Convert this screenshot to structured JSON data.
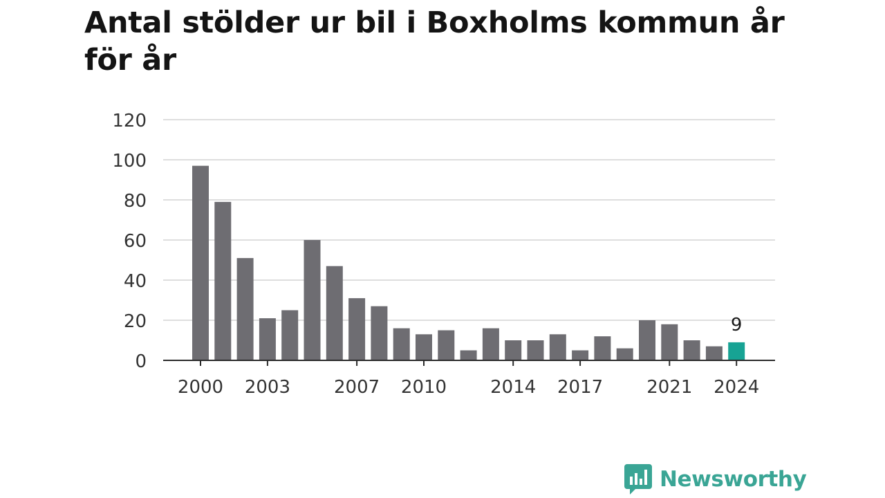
{
  "chart_data": {
    "type": "bar",
    "title": "Antal stölder ur bil i Boxholms kommun år för år",
    "xlabel": "",
    "ylabel": "",
    "categories": [
      2000,
      2001,
      2002,
      2003,
      2004,
      2005,
      2006,
      2007,
      2008,
      2009,
      2010,
      2011,
      2012,
      2013,
      2014,
      2015,
      2016,
      2017,
      2018,
      2019,
      2020,
      2021,
      2022,
      2023,
      2024
    ],
    "values": [
      97,
      79,
      51,
      21,
      25,
      60,
      47,
      31,
      27,
      16,
      13,
      15,
      5,
      16,
      10,
      10,
      13,
      5,
      12,
      6,
      20,
      18,
      10,
      7,
      9
    ],
    "ylim": [
      0,
      120
    ],
    "y_ticks": [
      0,
      20,
      40,
      60,
      80,
      100,
      120
    ],
    "x_tick_labels": [
      "2000",
      "2003",
      "2007",
      "2010",
      "2014",
      "2017",
      "2021",
      "2024"
    ],
    "highlight": {
      "category": 2024,
      "label": "9"
    },
    "grid": true,
    "colors": {
      "bar": "#6e6d72",
      "highlight": "#17a394",
      "grid": "#d4d4d4",
      "axis": "#2a2a2a"
    }
  },
  "brand": {
    "name": "Newsworthy",
    "icon": "newsworthy-logo-icon",
    "color": "#3aa595"
  }
}
